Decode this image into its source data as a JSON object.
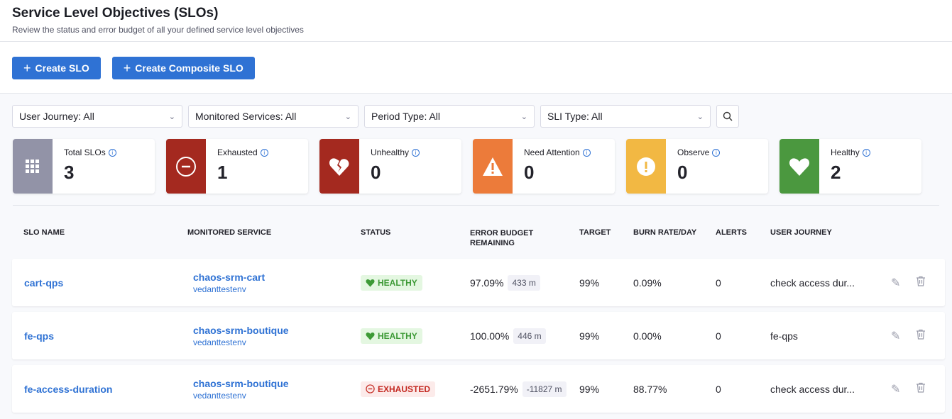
{
  "header": {
    "title": "Service Level Objectives (SLOs)",
    "subtitle": "Review the status and error budget of all your defined service level objectives"
  },
  "actions": {
    "create_slo": "Create SLO",
    "create_composite": "Create Composite SLO"
  },
  "filters": [
    "User Journey: All",
    "Monitored Services: All",
    "Period Type: All",
    "SLI Type: All"
  ],
  "cards": [
    {
      "label": "Total SLOs",
      "value": "3",
      "color": "#9293a7",
      "icon": "grid-icon"
    },
    {
      "label": "Exhausted",
      "value": "1",
      "color": "#a4291f",
      "icon": "minus-circle-icon"
    },
    {
      "label": "Unhealthy",
      "value": "0",
      "color": "#a4291f",
      "icon": "broken-heart-icon"
    },
    {
      "label": "Need Attention",
      "value": "0",
      "color": "#ec7b3a",
      "icon": "warning-icon"
    },
    {
      "label": "Observe",
      "value": "0",
      "color": "#f2b843",
      "icon": "exclamation-circle-icon"
    },
    {
      "label": "Healthy",
      "value": "2",
      "color": "#4b983f",
      "icon": "heart-icon"
    }
  ],
  "table": {
    "headers": [
      "SLO NAME",
      "MONITORED SERVICE",
      "STATUS",
      "ERROR BUDGET REMAINING",
      "TARGET",
      "BURN RATE/DAY",
      "ALERTS",
      "USER JOURNEY"
    ],
    "rows": [
      {
        "name": "cart-qps",
        "service": "chaos-srm-cart",
        "env": "vedanttestenv",
        "status": "HEALTHY",
        "budget": "97.09%",
        "minutes": "433 m",
        "target": "99%",
        "burn": "0.09%",
        "alerts": "0",
        "journey": "check access dur..."
      },
      {
        "name": "fe-qps",
        "service": "chaos-srm-boutique",
        "env": "vedanttestenv",
        "status": "HEALTHY",
        "budget": "100.00%",
        "minutes": "446 m",
        "target": "99%",
        "burn": "0.00%",
        "alerts": "0",
        "journey": "fe-qps"
      },
      {
        "name": "fe-access-duration",
        "service": "chaos-srm-boutique",
        "env": "vedanttestenv",
        "status": "EXHAUSTED",
        "budget": "-2651.79%",
        "minutes": "-11827 m",
        "target": "99%",
        "burn": "88.77%",
        "alerts": "0",
        "journey": "check access dur..."
      }
    ]
  }
}
